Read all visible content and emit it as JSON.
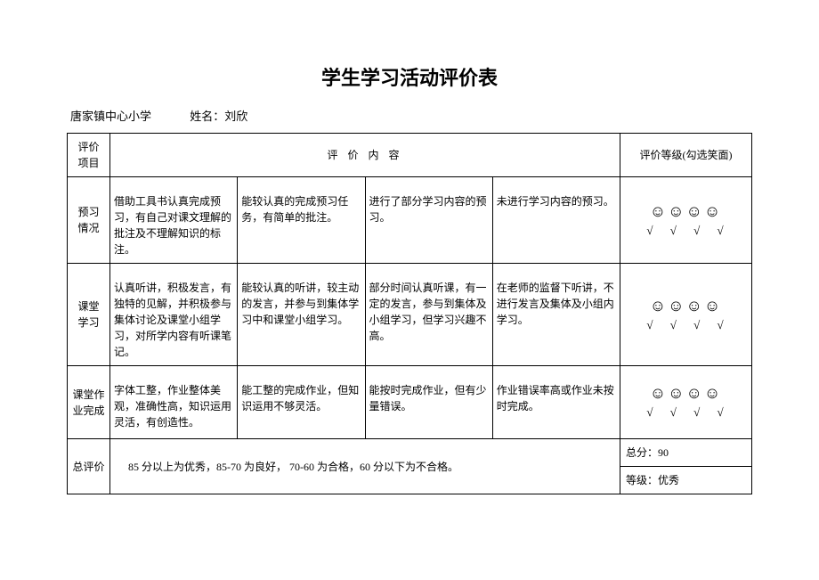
{
  "title": "学生学习活动评价表",
  "header": {
    "school": "唐家镇中心小学",
    "name_label": "姓名：",
    "name": "刘欣"
  },
  "table": {
    "col_headers": {
      "item": "评价\n项目",
      "content": "评 价 内 容",
      "rating": "评价等级(勾选笑面)"
    },
    "rows": [
      {
        "item": "预习\n情况",
        "c1": "借助工具书认真完成预习，有自己对课文理解的批注及不理解知识的标注。",
        "c2": "能较认真的完成预习任务，有简单的批注。",
        "c3": "进行了部分学习内容的预习。",
        "c4": "未进行学习内容的预习。",
        "smileys": "☺☺☺☺",
        "checks": "√ √ √ √"
      },
      {
        "item": "课堂\n学习",
        "c1": "认真听讲，积极发言，有独特的见解，并积极参与集体讨论及课堂小组学习，对所学内容有听课笔记。",
        "c2": "能较认真的听讲，较主动的发言，并参与到集体学习中和课堂小组学习。",
        "c3": "部分时间认真听课，有一定的发言，参与到集体及小组学习，但学习兴趣不高。",
        "c4": "在老师的监督下听讲，不进行发言及集体及小组内学习。",
        "smileys": "☺☺☺☺",
        "checks": "√ √ √ √"
      },
      {
        "item": "课堂作业完成",
        "c1": "字体工整，作业整体美观，准确性高，知识运用灵活，有创造性。",
        "c2": "能工整的完成作业，但知识运用不够灵活。",
        "c3": "能按时完成作业，但有少量错误。",
        "c4": "作业错误率高或作业未按时完成。",
        "smileys": "☺☺☺☺",
        "checks": "√ √ √ √"
      }
    ],
    "total": {
      "label": "总评价",
      "criteria": "85 分以上为优秀，85-70 为良好， 70-60 为合格，60 分以下为不合格。",
      "score_label": "总分：",
      "score": "90",
      "grade_label": "等级：",
      "grade": "优秀"
    }
  }
}
